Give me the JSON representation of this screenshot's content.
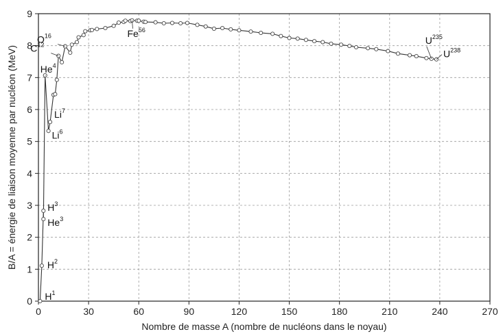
{
  "chart_data": {
    "type": "line",
    "title": "",
    "xlabel": "Nombre de masse A (nombre de nucléons dans le noyau)",
    "ylabel": "B/A = énergie de liaison moyenne par nucléon (MeV)",
    "xlim": [
      0,
      270
    ],
    "ylim": [
      0,
      9
    ],
    "xticks": [
      "0",
      "30",
      "60",
      "90",
      "120",
      "150",
      "180",
      "210",
      "240",
      "270"
    ],
    "yticks": [
      "0",
      "1",
      "2",
      "3",
      "4",
      "5",
      "6",
      "7",
      "8",
      "9"
    ],
    "grid": true,
    "series": [
      {
        "x": [
          1,
          2,
          3,
          3,
          4,
          6,
          7,
          9,
          10,
          11,
          12,
          14,
          16,
          19,
          20,
          23,
          24,
          27,
          28,
          31,
          32,
          35,
          40,
          45,
          48,
          51,
          52,
          55,
          56,
          59,
          60,
          63,
          64,
          70,
          75,
          80,
          85,
          89,
          95,
          100,
          105,
          110,
          115,
          120,
          127,
          133,
          140,
          145,
          150,
          155,
          160,
          165,
          170,
          175,
          181,
          186,
          190,
          197,
          202,
          209,
          215,
          222,
          226,
          232,
          235,
          238
        ],
        "y": [
          0,
          1.11,
          2.83,
          2.57,
          7.07,
          5.33,
          5.61,
          6.46,
          6.48,
          6.93,
          7.68,
          7.48,
          7.98,
          7.78,
          8.03,
          8.11,
          8.26,
          8.33,
          8.45,
          8.48,
          8.49,
          8.52,
          8.55,
          8.62,
          8.72,
          8.74,
          8.78,
          8.77,
          8.79,
          8.78,
          8.78,
          8.75,
          8.74,
          8.73,
          8.7,
          8.71,
          8.7,
          8.71,
          8.65,
          8.6,
          8.53,
          8.55,
          8.51,
          8.48,
          8.44,
          8.4,
          8.37,
          8.3,
          8.24,
          8.22,
          8.18,
          8.14,
          8.11,
          8.06,
          8.03,
          7.99,
          7.95,
          7.92,
          7.89,
          7.83,
          7.75,
          7.7,
          7.67,
          7.61,
          7.59,
          7.57
        ]
      }
    ],
    "labels": [
      {
        "base": "H",
        "sup": "1",
        "x": 1,
        "y": 0.0
      },
      {
        "base": "H",
        "sup": "2",
        "x": 2,
        "y": 1.11
      },
      {
        "base": "H",
        "sup": "3",
        "x": 3,
        "y": 2.83
      },
      {
        "base": "He",
        "sup": "3",
        "x": 3,
        "y": 2.57
      },
      {
        "base": "He",
        "sup": "4",
        "x": 4,
        "y": 7.07
      },
      {
        "base": "Li",
        "sup": "7",
        "x": 7,
        "y": 5.61
      },
      {
        "base": "Li",
        "sup": "6",
        "x": 6,
        "y": 5.33
      },
      {
        "base": "C",
        "sup": "12",
        "x": 12,
        "y": 7.68
      },
      {
        "base": "O",
        "sup": "16",
        "x": 16,
        "y": 7.98
      },
      {
        "base": "Fe",
        "sup": "56",
        "x": 56,
        "y": 8.79
      },
      {
        "base": "U",
        "sup": "235",
        "x": 235,
        "y": 7.59
      },
      {
        "base": "U",
        "sup": "238",
        "x": 238,
        "y": 7.57
      }
    ]
  }
}
